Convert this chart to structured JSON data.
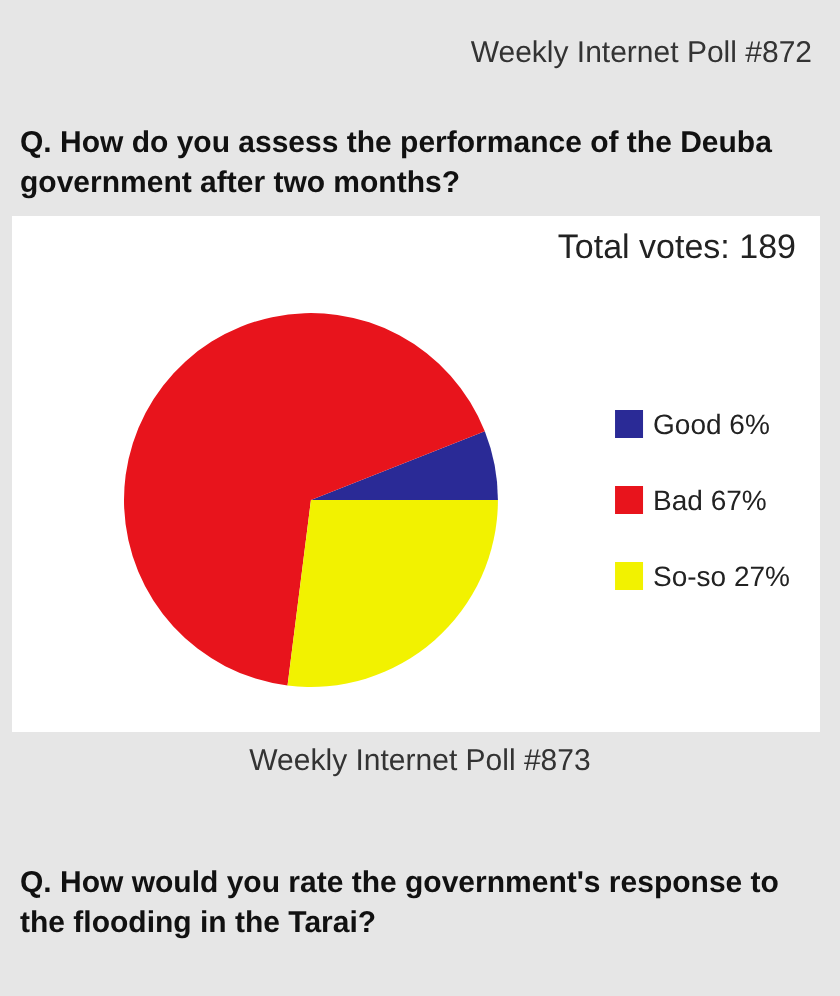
{
  "chart_data": {
    "type": "pie",
    "title": "Weekly Internet Poll  #872",
    "subtitle": "Q. How do you assess the performance of the Deuba government after two months?",
    "categories": [
      "Good 6%",
      "Bad 67%",
      "So-so 27%"
    ],
    "values": [
      6,
      67,
      27
    ],
    "colors": [
      "#2a2a96",
      "#e8141c",
      "#f2f200"
    ],
    "legend": "right",
    "annotations": [
      "Total votes: 189",
      "Weekly Internet Poll  #873",
      "Q. How would you rate the government's response to the flooding in the Tarai?"
    ]
  }
}
